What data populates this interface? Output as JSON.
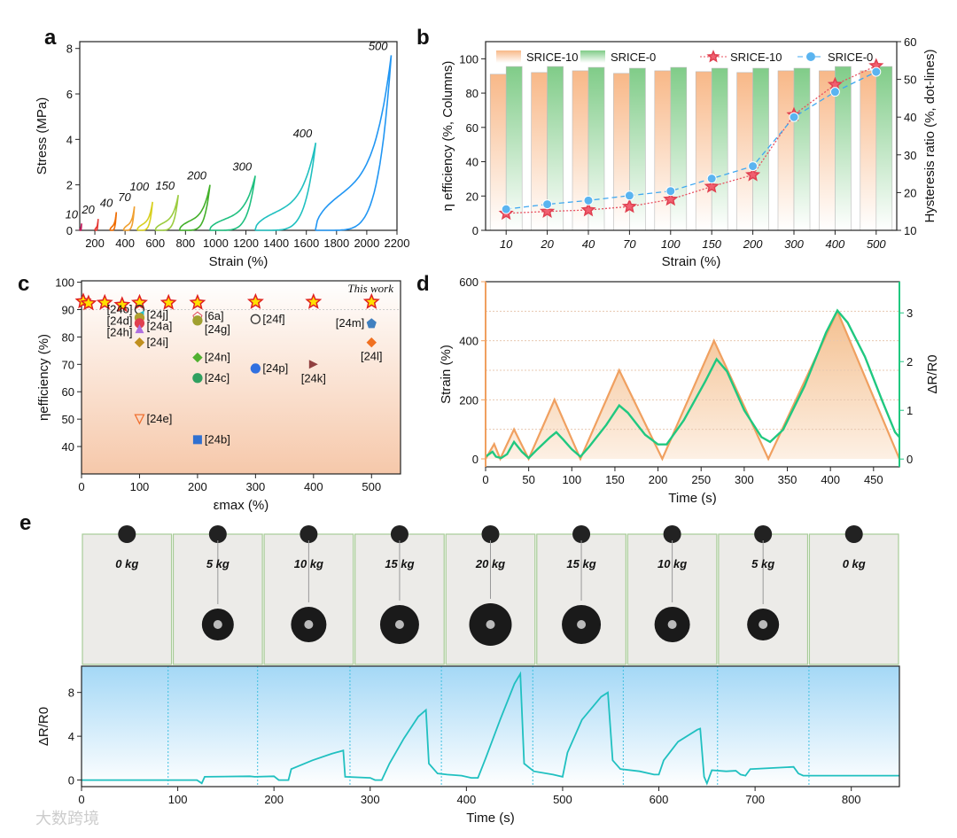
{
  "panel_labels": {
    "a": "a",
    "b": "b",
    "c": "c",
    "d": "d",
    "e": "e"
  },
  "watermark": "大数跨境",
  "chart_data": [
    {
      "id": "a",
      "type": "line",
      "xlabel": "Strain (%)",
      "ylabel": "Stress (MPa)",
      "xlim": [
        100,
        2200
      ],
      "ylim": [
        0,
        8.3
      ],
      "xticks": [
        200,
        400,
        600,
        800,
        1000,
        1200,
        1400,
        1600,
        1800,
        2000,
        2200
      ],
      "yticks": [
        0,
        2,
        4,
        6,
        8
      ],
      "loops": [
        {
          "label": "10",
          "start": 100,
          "end": 112,
          "peak": 0.3,
          "color": "#c2185b"
        },
        {
          "label": "20",
          "start": 200,
          "end": 222,
          "peak": 0.5,
          "color": "#e53935"
        },
        {
          "label": "40",
          "start": 300,
          "end": 342,
          "peak": 0.8,
          "color": "#ef6c00"
        },
        {
          "label": "70",
          "start": 390,
          "end": 462,
          "peak": 1.05,
          "color": "#f0a030"
        },
        {
          "label": "100",
          "start": 480,
          "end": 582,
          "peak": 1.25,
          "color": "#d8d020"
        },
        {
          "label": "150",
          "start": 600,
          "end": 752,
          "peak": 1.55,
          "color": "#9ccc40"
        },
        {
          "label": "200",
          "start": 760,
          "end": 962,
          "peak": 2.0,
          "color": "#43b02a"
        },
        {
          "label": "300",
          "start": 960,
          "end": 1262,
          "peak": 2.4,
          "color": "#20c080"
        },
        {
          "label": "400",
          "start": 1260,
          "end": 1662,
          "peak": 3.85,
          "color": "#20c0c0"
        },
        {
          "label": "500",
          "start": 1660,
          "end": 2162,
          "peak": 7.7,
          "color": "#2196f3"
        }
      ]
    },
    {
      "id": "b",
      "type": "bar",
      "xlabel": "Strain (%)",
      "ylabel": "η efficiency (%, Columns)",
      "y2label": "Hysteresis ratio (%, dot-lines)",
      "ylim": [
        0,
        110
      ],
      "y2lim": [
        10,
        60
      ],
      "yticks": [
        0,
        20,
        40,
        60,
        80,
        100
      ],
      "y2ticks": [
        10,
        20,
        30,
        40,
        50,
        60
      ],
      "categories": [
        "10",
        "20",
        "40",
        "70",
        "100",
        "150",
        "200",
        "300",
        "400",
        "500"
      ],
      "bars": [
        {
          "name": "SRICE-10",
          "color": "#f8b888",
          "values": [
            91,
            92,
            93,
            91.5,
            93,
            92.5,
            92,
            93,
            93,
            93
          ]
        },
        {
          "name": "SRICE-0",
          "color": "#80cc88",
          "values": [
            95.5,
            95.5,
            95,
            94.5,
            95,
            94.5,
            94.5,
            94.5,
            95.5,
            95.5
          ]
        }
      ],
      "lines": [
        {
          "name": "SRICE-10",
          "color": "#e85060",
          "marker": "star",
          "values": [
            14.5,
            15,
            15.4,
            16.3,
            18.2,
            21.6,
            24.7,
            40.6,
            48.6,
            53.6
          ]
        },
        {
          "name": "SRICE-0",
          "color": "#40a8f0",
          "marker": "circle",
          "values": [
            15.6,
            16.9,
            17.9,
            19.2,
            20.4,
            23.7,
            27,
            40,
            46.7,
            52
          ]
        }
      ]
    },
    {
      "id": "c",
      "type": "scatter",
      "xlabel": "εmax (%)",
      "ylabel": "ηefficiency (%)",
      "xlim": [
        0,
        550
      ],
      "ylim": [
        30,
        100.5
      ],
      "xticks": [
        0,
        100,
        200,
        300,
        400,
        500
      ],
      "yticks": [
        40,
        50,
        60,
        70,
        80,
        90,
        100
      ],
      "annotation": "This work",
      "this_work": [
        [
          3,
          93
        ],
        [
          12,
          92.3
        ],
        [
          40,
          92.5
        ],
        [
          70,
          91.7
        ],
        [
          100,
          92.5
        ],
        [
          150,
          92.5
        ],
        [
          200,
          92.5
        ],
        [
          300,
          92.8
        ],
        [
          400,
          92.8
        ],
        [
          500,
          92.8
        ]
      ],
      "references": [
        {
          "label": "[24o]",
          "x": 100,
          "y": 90,
          "color": "#333333",
          "marker": "circle-open",
          "side": "left"
        },
        {
          "label": "[24j]",
          "x": 100,
          "y": 88,
          "color": "#20c0d0",
          "marker": "tri-left",
          "side": "right"
        },
        {
          "label": "[24d]",
          "x": 100,
          "y": 87,
          "color": "#b0a030",
          "marker": "hourglass",
          "side": "left"
        },
        {
          "label": "[24a]",
          "x": 100,
          "y": 85,
          "color": "#e04050",
          "marker": "circle",
          "side": "right"
        },
        {
          "label": "[24h]",
          "x": 100,
          "y": 83,
          "color": "#b070e0",
          "marker": "tri-up",
          "side": "left"
        },
        {
          "label": "[24i]",
          "x": 100,
          "y": 78,
          "color": "#c09020",
          "marker": "diamond",
          "side": "right"
        },
        {
          "label": "[6a]",
          "x": 200,
          "y": 87.5,
          "color": "#e05060",
          "marker": "pentagon-open",
          "side": "right"
        },
        {
          "label": "[24g]",
          "x": 200,
          "y": 86,
          "color": "#a0a030",
          "marker": "circle",
          "side": "right-below"
        },
        {
          "label": "[24f]",
          "x": 300,
          "y": 86.5,
          "color": "#333333",
          "marker": "circle-open",
          "side": "right"
        },
        {
          "label": "[24m]",
          "x": 500,
          "y": 85,
          "color": "#4080c0",
          "marker": "pentagon",
          "side": "left"
        },
        {
          "label": "[24l]",
          "x": 500,
          "y": 78,
          "color": "#f07020",
          "marker": "diamond",
          "side": "below"
        },
        {
          "label": "[24n]",
          "x": 200,
          "y": 72.5,
          "color": "#50b030",
          "marker": "diamond",
          "side": "right"
        },
        {
          "label": "[24p]",
          "x": 300,
          "y": 68.5,
          "color": "#3070e0",
          "marker": "circle",
          "side": "right"
        },
        {
          "label": "[24k]",
          "x": 400,
          "y": 70,
          "color": "#904040",
          "marker": "tri-right",
          "side": "below"
        },
        {
          "label": "[24c]",
          "x": 200,
          "y": 65,
          "color": "#30a060",
          "marker": "circle",
          "side": "right"
        },
        {
          "label": "[24e]",
          "x": 100,
          "y": 50,
          "color": "#f07030",
          "marker": "tri-down-open",
          "side": "right"
        },
        {
          "label": "[24b]",
          "x": 200,
          "y": 42.5,
          "color": "#3070d0",
          "marker": "square",
          "side": "right"
        }
      ]
    },
    {
      "id": "d",
      "type": "line",
      "xlabel": "Time (s)",
      "ylabel": "Strain (%)",
      "y2label": "ΔR/R0",
      "xlim": [
        0,
        480
      ],
      "ylim": [
        -27,
        600
      ],
      "y2lim": [
        -0.16,
        3.64
      ],
      "xticks": [
        0,
        50,
        100,
        150,
        200,
        250,
        300,
        350,
        400,
        450
      ],
      "yticks": [
        0,
        200,
        400,
        600
      ],
      "y2ticks": [
        0,
        1,
        2,
        3
      ],
      "strain": {
        "color": "#f0a060",
        "points": [
          [
            0,
            0
          ],
          [
            10,
            50
          ],
          [
            17,
            0
          ],
          [
            33,
            100
          ],
          [
            50,
            0
          ],
          [
            80,
            200
          ],
          [
            110,
            0
          ],
          [
            155,
            300
          ],
          [
            205,
            0
          ],
          [
            265,
            400
          ],
          [
            328,
            0
          ],
          [
            408,
            500
          ],
          [
            480,
            0
          ]
        ]
      },
      "resistance": {
        "color": "#20c880",
        "points": [
          [
            0,
            0.05
          ],
          [
            8,
            0.15
          ],
          [
            12,
            0.05
          ],
          [
            18,
            0.02
          ],
          [
            25,
            0.1
          ],
          [
            33,
            0.35
          ],
          [
            42,
            0.15
          ],
          [
            50,
            0.02
          ],
          [
            60,
            0.2
          ],
          [
            75,
            0.45
          ],
          [
            82,
            0.55
          ],
          [
            90,
            0.4
          ],
          [
            100,
            0.2
          ],
          [
            110,
            0.05
          ],
          [
            120,
            0.25
          ],
          [
            140,
            0.7
          ],
          [
            155,
            1.1
          ],
          [
            165,
            0.95
          ],
          [
            185,
            0.5
          ],
          [
            200,
            0.3
          ],
          [
            210,
            0.3
          ],
          [
            230,
            0.8
          ],
          [
            255,
            1.6
          ],
          [
            268,
            2.05
          ],
          [
            280,
            1.8
          ],
          [
            300,
            1.0
          ],
          [
            320,
            0.45
          ],
          [
            330,
            0.35
          ],
          [
            345,
            0.6
          ],
          [
            370,
            1.5
          ],
          [
            395,
            2.6
          ],
          [
            408,
            3.05
          ],
          [
            420,
            2.8
          ],
          [
            440,
            2.1
          ],
          [
            460,
            1.2
          ],
          [
            475,
            0.55
          ],
          [
            480,
            0.45
          ]
        ]
      }
    },
    {
      "id": "e",
      "type": "line",
      "xlabel": "Time (s)",
      "ylabel": "ΔR/R0",
      "xlim": [
        0,
        850
      ],
      "ylim": [
        -0.6,
        10.4
      ],
      "xticks": [
        0,
        100,
        200,
        300,
        400,
        500,
        600,
        700,
        800
      ],
      "yticks": [
        0,
        4,
        8
      ],
      "load_labels": [
        "0 kg",
        "5 kg",
        "10 kg",
        "15 kg",
        "20 kg",
        "15 kg",
        "10 kg",
        "5 kg",
        "0 kg"
      ],
      "load_kg": [
        0,
        5,
        10,
        15,
        20,
        15,
        10,
        5,
        0
      ],
      "stage_boundaries": [
        90,
        183,
        279,
        374,
        469,
        563,
        661,
        756
      ],
      "color": "#20c0c0",
      "points": [
        [
          0,
          0
        ],
        [
          120,
          0
        ],
        [
          125,
          -0.3
        ],
        [
          128,
          0.3
        ],
        [
          175,
          0.35
        ],
        [
          180,
          0.3
        ],
        [
          200,
          0.35
        ],
        [
          205,
          0
        ],
        [
          215,
          0
        ],
        [
          218,
          1.0
        ],
        [
          240,
          1.8
        ],
        [
          260,
          2.4
        ],
        [
          272,
          2.7
        ],
        [
          274,
          0.3
        ],
        [
          300,
          0.2
        ],
        [
          305,
          0
        ],
        [
          312,
          0
        ],
        [
          320,
          1.5
        ],
        [
          335,
          3.8
        ],
        [
          350,
          5.8
        ],
        [
          358,
          6.4
        ],
        [
          361,
          1.5
        ],
        [
          370,
          0.6
        ],
        [
          380,
          0.5
        ],
        [
          395,
          0.4
        ],
        [
          405,
          0.2
        ],
        [
          412,
          0.2
        ],
        [
          420,
          2
        ],
        [
          435,
          5.5
        ],
        [
          450,
          8.8
        ],
        [
          456,
          9.7
        ],
        [
          460,
          1.5
        ],
        [
          470,
          0.8
        ],
        [
          490,
          0.5
        ],
        [
          500,
          0.3
        ],
        [
          505,
          2.5
        ],
        [
          520,
          5.5
        ],
        [
          540,
          7.6
        ],
        [
          547,
          8.0
        ],
        [
          552,
          1.8
        ],
        [
          560,
          1.0
        ],
        [
          580,
          0.8
        ],
        [
          595,
          0.5
        ],
        [
          600,
          0.5
        ],
        [
          605,
          1.8
        ],
        [
          620,
          3.5
        ],
        [
          640,
          4.6
        ],
        [
          643,
          4.7
        ],
        [
          647,
          0.3
        ],
        [
          650,
          -0.3
        ],
        [
          655,
          0.9
        ],
        [
          670,
          0.8
        ],
        [
          680,
          0.85
        ],
        [
          685,
          0.5
        ],
        [
          690,
          0.4
        ],
        [
          695,
          1.0
        ],
        [
          740,
          1.2
        ],
        [
          745,
          0.6
        ],
        [
          750,
          0.4
        ],
        [
          850,
          0.4
        ]
      ]
    }
  ]
}
